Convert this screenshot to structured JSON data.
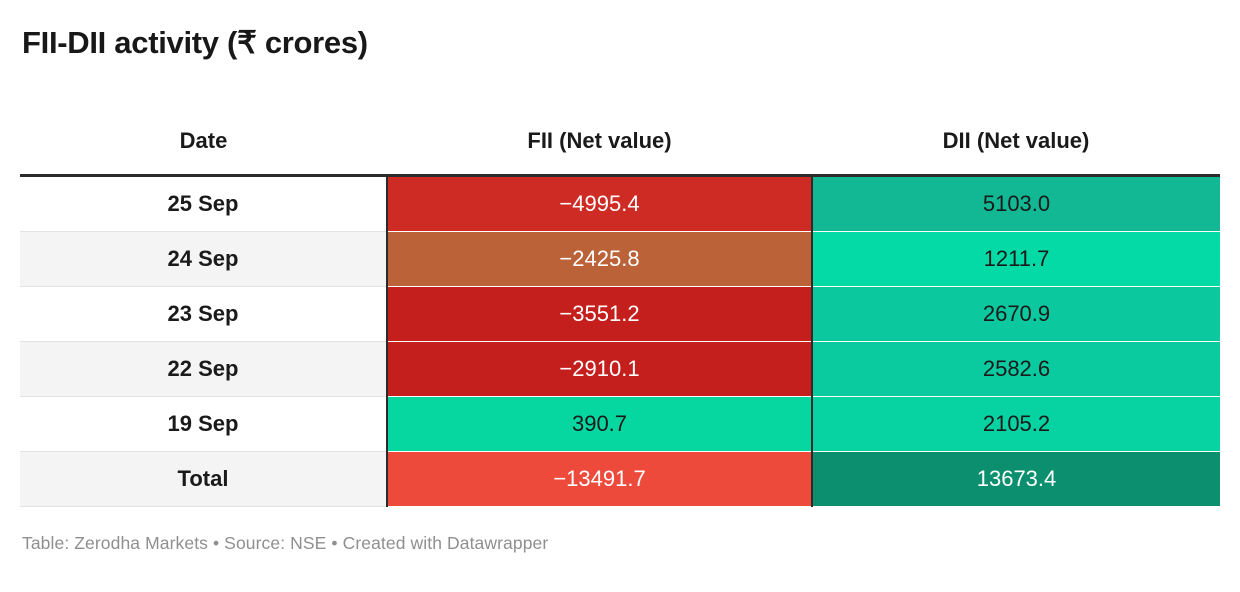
{
  "title": "FII-DII activity (₹ crores)",
  "table": {
    "columns": [
      {
        "label": "Date"
      },
      {
        "label": "FII (Net value)"
      },
      {
        "label": "DII (Net value)"
      }
    ],
    "rows": [
      {
        "date": "25 Sep",
        "is_total": false,
        "fii": {
          "value": "−4995.4",
          "bg": "#cd2b23",
          "text": "#ffffff"
        },
        "dii": {
          "value": "5103.0",
          "bg": "#12b894",
          "text": "#1a1a1a"
        }
      },
      {
        "date": "24 Sep",
        "is_total": false,
        "fii": {
          "value": "−2425.8",
          "bg": "#bb6238",
          "text": "#ffffff"
        },
        "dii": {
          "value": "1211.7",
          "bg": "#04daa5",
          "text": "#1a1a1a"
        }
      },
      {
        "date": "23 Sep",
        "is_total": false,
        "fii": {
          "value": "−3551.2",
          "bg": "#c41f1d",
          "text": "#ffffff"
        },
        "dii": {
          "value": "2670.9",
          "bg": "#0bc89e",
          "text": "#1a1a1a"
        }
      },
      {
        "date": "22 Sep",
        "is_total": false,
        "fii": {
          "value": "−2910.1",
          "bg": "#c41f1d",
          "text": "#ffffff"
        },
        "dii": {
          "value": "2582.6",
          "bg": "#0acaa0",
          "text": "#1a1a1a"
        }
      },
      {
        "date": "19 Sep",
        "is_total": false,
        "fii": {
          "value": "390.7",
          "bg": "#06d6a0",
          "text": "#1a1a1a"
        },
        "dii": {
          "value": "2105.2",
          "bg": "#07d2a2",
          "text": "#1a1a1a"
        }
      },
      {
        "date": "Total",
        "is_total": true,
        "fii": {
          "value": "−13491.7",
          "bg": "#ee4a3b",
          "text": "#ffffff"
        },
        "dii": {
          "value": "13673.4",
          "bg": "#0c8f6e",
          "text": "#ffffff"
        }
      }
    ]
  },
  "footer": "Table: Zerodha Markets • Source: NSE • Created with Datawrapper",
  "colors": {
    "negative_strong": "#c41f1d",
    "negative_mid": "#cd2b23",
    "negative_brown": "#bb6238",
    "negative_total": "#ee4a3b",
    "positive_bright": "#04daa5",
    "positive_mid": "#0bc89e",
    "positive_dark": "#12b894",
    "positive_total": "#0c8f6e",
    "header_rule": "#2b2b2b",
    "zebra": "#f4f4f4",
    "footer_text": "#8f8f8f"
  },
  "chart_data": {
    "type": "table",
    "title": "FII-DII activity (₹ crores)",
    "columns": [
      "Date",
      "FII (Net value)",
      "DII (Net value)"
    ],
    "categories": [
      "25 Sep",
      "24 Sep",
      "23 Sep",
      "22 Sep",
      "19 Sep",
      "Total"
    ],
    "series": [
      {
        "name": "FII (Net value)",
        "values": [
          -4995.4,
          -2425.8,
          -3551.2,
          -2910.1,
          390.7,
          -13491.7
        ]
      },
      {
        "name": "DII (Net value)",
        "values": [
          5103.0,
          1211.7,
          2670.9,
          2582.6,
          2105.2,
          13673.4
        ]
      }
    ],
    "notes": "Table: Zerodha Markets • Source: NSE • Created with Datawrapper",
    "legend_position": "none",
    "color_rule": "negative values shaded red/brown with white text, positive values shaded green/teal with dark text; Total row uses stronger saturated fills"
  }
}
